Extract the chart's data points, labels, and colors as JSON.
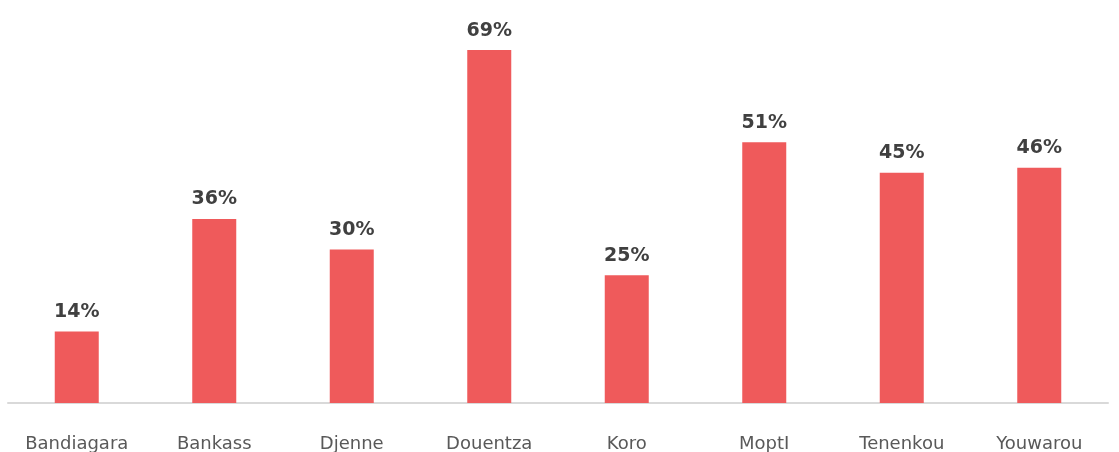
{
  "chart_data": {
    "type": "bar",
    "categories": [
      "Bandiagara",
      "Bankass",
      "Djenne",
      "Douentza",
      "Koro",
      "MoptI",
      "Tenenkou",
      "Youwarou"
    ],
    "values": [
      14,
      36,
      30,
      69,
      25,
      51,
      45,
      46
    ],
    "value_labels": [
      "14%",
      "36%",
      "30%",
      "69%",
      "25%",
      "51%",
      "45%",
      "46%"
    ],
    "color": "#ef5a5b",
    "tick_labels": "x"
  }
}
